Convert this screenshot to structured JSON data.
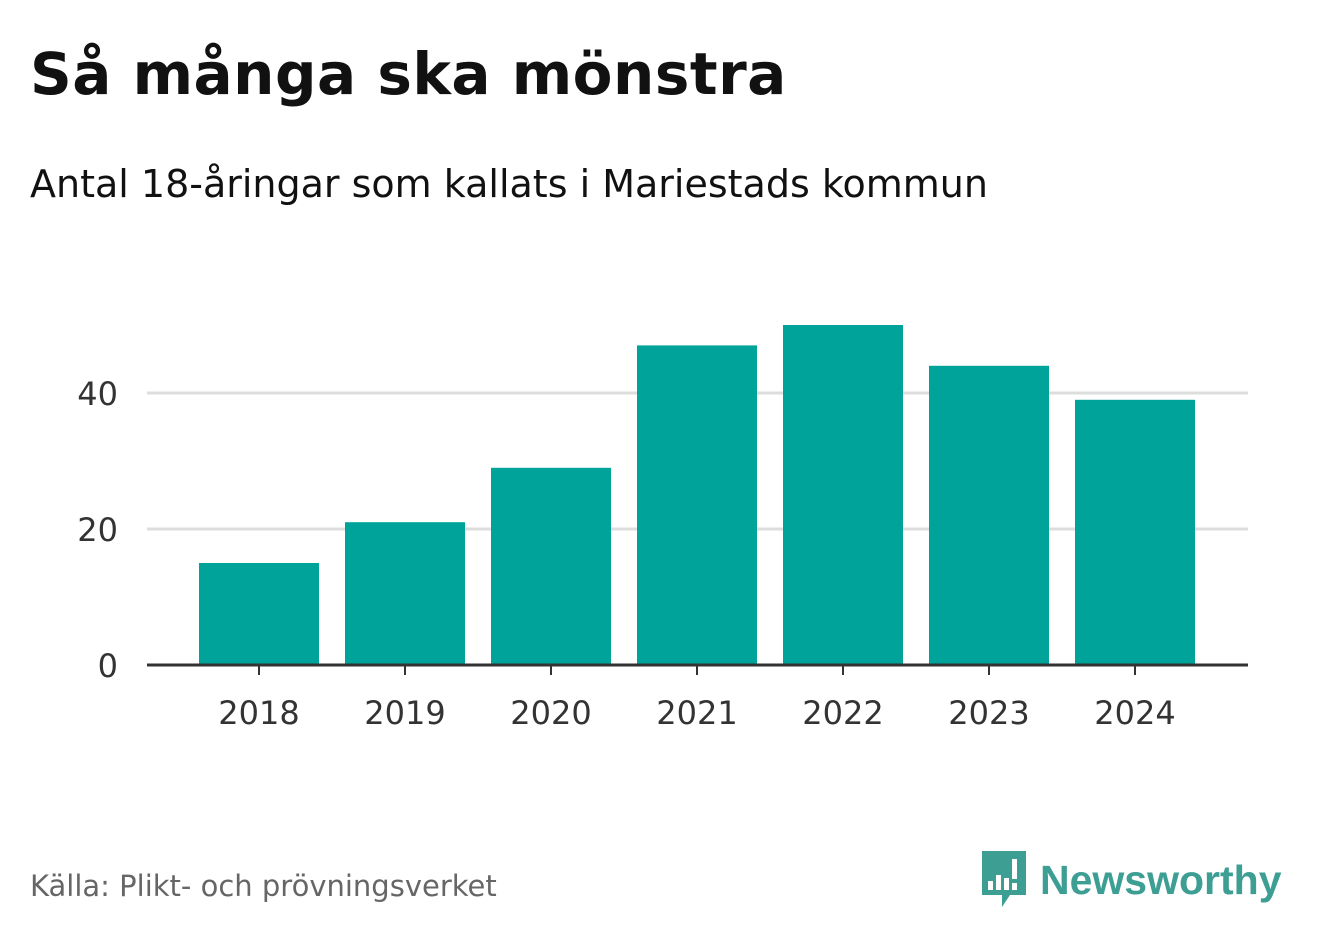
{
  "header": {
    "title": "Så många ska mönstra",
    "subtitle": "Antal 18-åringar som kallats i Mariestads kommun"
  },
  "footer": {
    "source": "Källa: Plikt- och prövningsverket",
    "brand": "Newsworthy",
    "logo_icon": "newsworthy-logo-icon"
  },
  "colors": {
    "bar": "#00a39a",
    "grid": "#dddddd",
    "axis": "#333333",
    "tick_text": "#333333",
    "brand": "#3d9e93"
  },
  "chart_data": {
    "type": "bar",
    "title": "Så många ska mönstra",
    "subtitle": "Antal 18-åringar som kallats i Mariestads kommun",
    "categories": [
      "2018",
      "2019",
      "2020",
      "2021",
      "2022",
      "2023",
      "2024"
    ],
    "values": [
      15,
      21,
      29,
      47,
      50,
      44,
      39
    ],
    "xlabel": "",
    "ylabel": "",
    "ylim": [
      0,
      50
    ],
    "yticks": [
      0,
      20,
      40
    ],
    "grid": true,
    "legend": "none"
  }
}
